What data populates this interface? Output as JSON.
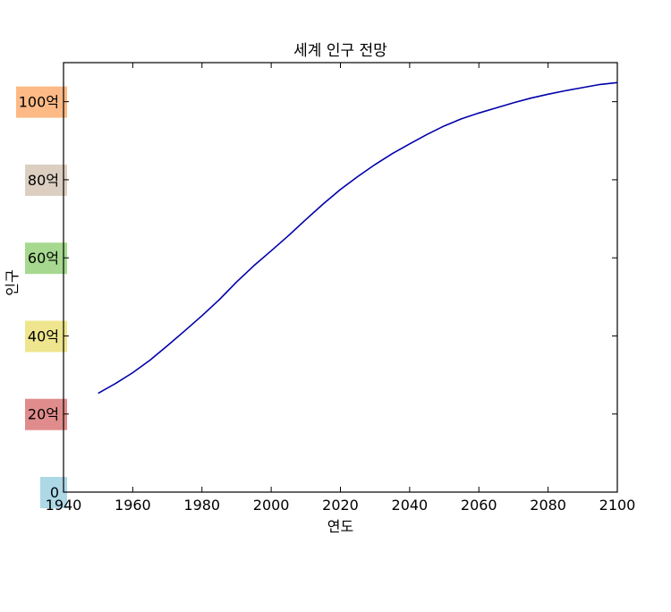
{
  "chart_data": {
    "type": "line",
    "title": "세계 인구 전망",
    "xlabel": "연도",
    "ylabel": "인구",
    "xlim": [
      1940,
      2100
    ],
    "ylim": [
      0,
      110
    ],
    "grid": false,
    "x_ticks": [
      1940,
      1960,
      1980,
      2000,
      2020,
      2040,
      2060,
      2080,
      2100
    ],
    "x_tick_labels": [
      "1940",
      "1960",
      "1980",
      "2000",
      "2020",
      "2040",
      "2060",
      "2080",
      "2100"
    ],
    "y_ticks": [
      0,
      20,
      40,
      60,
      80,
      100
    ],
    "y_tick_labels": [
      "0",
      "20억",
      "40억",
      "60억",
      "80억",
      "100억"
    ],
    "y_tick_label_backgrounds": [
      "#add8e6",
      "#e08c8c",
      "#eee58e",
      "#a6d98f",
      "#dccfc2",
      "#fdba86"
    ],
    "series": [
      {
        "color": "#0000aa",
        "x": [
          1950,
          1955,
          1960,
          1965,
          1970,
          1975,
          1980,
          1985,
          1990,
          1995,
          2000,
          2005,
          2010,
          2015,
          2020,
          2025,
          2030,
          2035,
          2040,
          2045,
          2050,
          2055,
          2060,
          2065,
          2070,
          2075,
          2080,
          2085,
          2090,
          2095,
          2100
        ],
        "y": [
          25.3,
          27.8,
          30.6,
          33.8,
          37.5,
          41.3,
          45.2,
          49.3,
          53.8,
          58.0,
          61.8,
          65.7,
          69.8,
          73.8,
          77.5,
          80.8,
          83.9,
          86.7,
          89.2,
          91.6,
          93.8,
          95.6,
          97.1,
          98.4,
          99.7,
          100.9,
          101.9,
          102.8,
          103.6,
          104.4,
          104.9
        ]
      }
    ]
  }
}
